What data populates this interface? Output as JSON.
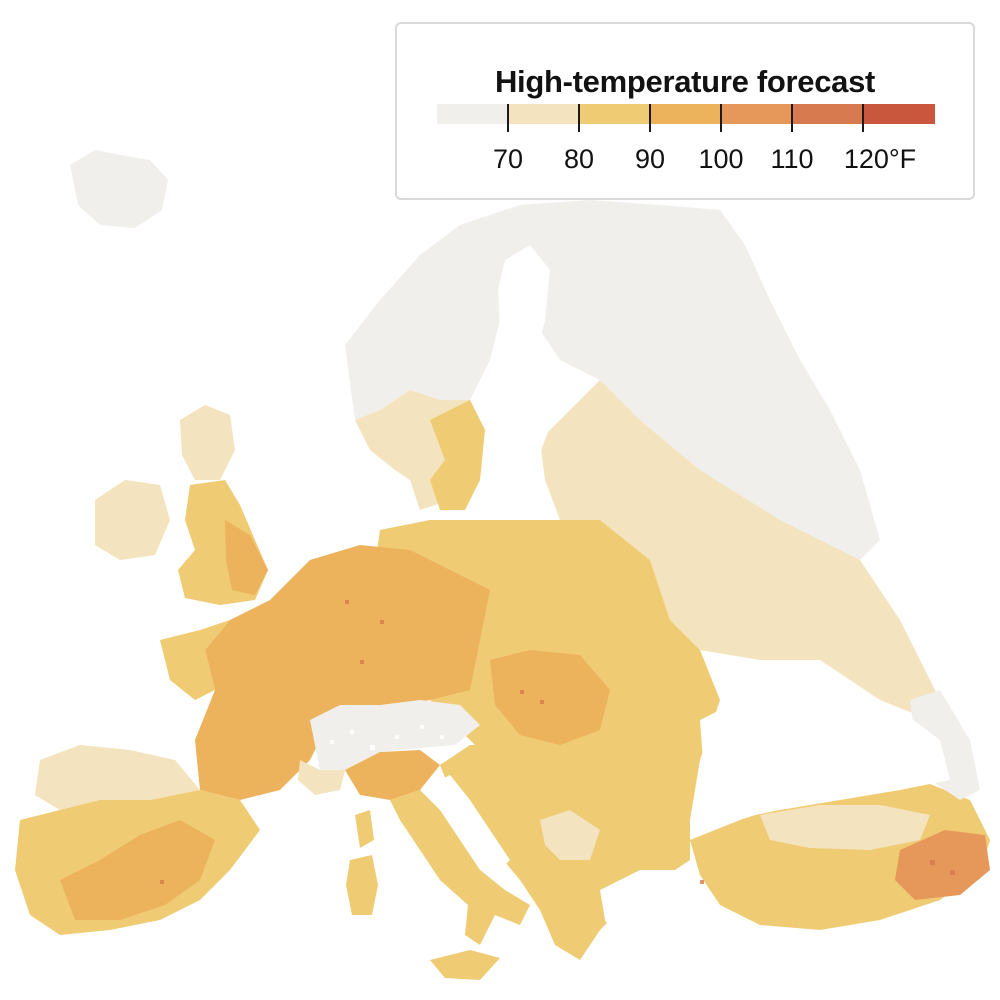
{
  "legend": {
    "title": "High-temperature forecast",
    "bins": [
      {
        "color": "#f1efec"
      },
      {
        "color": "#f3e3be"
      },
      {
        "color": "#efcb73"
      },
      {
        "color": "#ecb25c"
      },
      {
        "color": "#e6985a"
      },
      {
        "color": "#d77a4f"
      },
      {
        "color": "#c9573e"
      }
    ],
    "breaks": [
      {
        "value": 70,
        "label": "70"
      },
      {
        "value": 80,
        "label": "80"
      },
      {
        "value": 90,
        "label": "90"
      },
      {
        "value": 100,
        "label": "100"
      },
      {
        "value": 110,
        "label": "110"
      },
      {
        "value": 120,
        "label": "120°F"
      }
    ]
  },
  "map": {
    "region": "Europe",
    "sea_color": "#ffffff",
    "zones": [
      {
        "name": "scandinavia-north",
        "temp_class": "below-70"
      },
      {
        "name": "iceland",
        "temp_class": "below-70"
      },
      {
        "name": "southern-sweden",
        "temp_class": "80-90"
      },
      {
        "name": "eastern-europe-russia",
        "temp_class": "70-80"
      },
      {
        "name": "central-europe",
        "temp_class": "80-90"
      },
      {
        "name": "france-germany-core",
        "temp_class": "90-100"
      },
      {
        "name": "hungary",
        "temp_class": "90-100"
      },
      {
        "name": "iberia",
        "temp_class": "80-90"
      },
      {
        "name": "southern-spain",
        "temp_class": "90-100"
      },
      {
        "name": "italy",
        "temp_class": "80-90"
      },
      {
        "name": "alps",
        "temp_class": "below-70"
      },
      {
        "name": "balkans",
        "temp_class": "80-90"
      },
      {
        "name": "turkey",
        "temp_class": "80-90"
      },
      {
        "name": "southeast-turkey",
        "temp_class": "100-110"
      }
    ]
  }
}
